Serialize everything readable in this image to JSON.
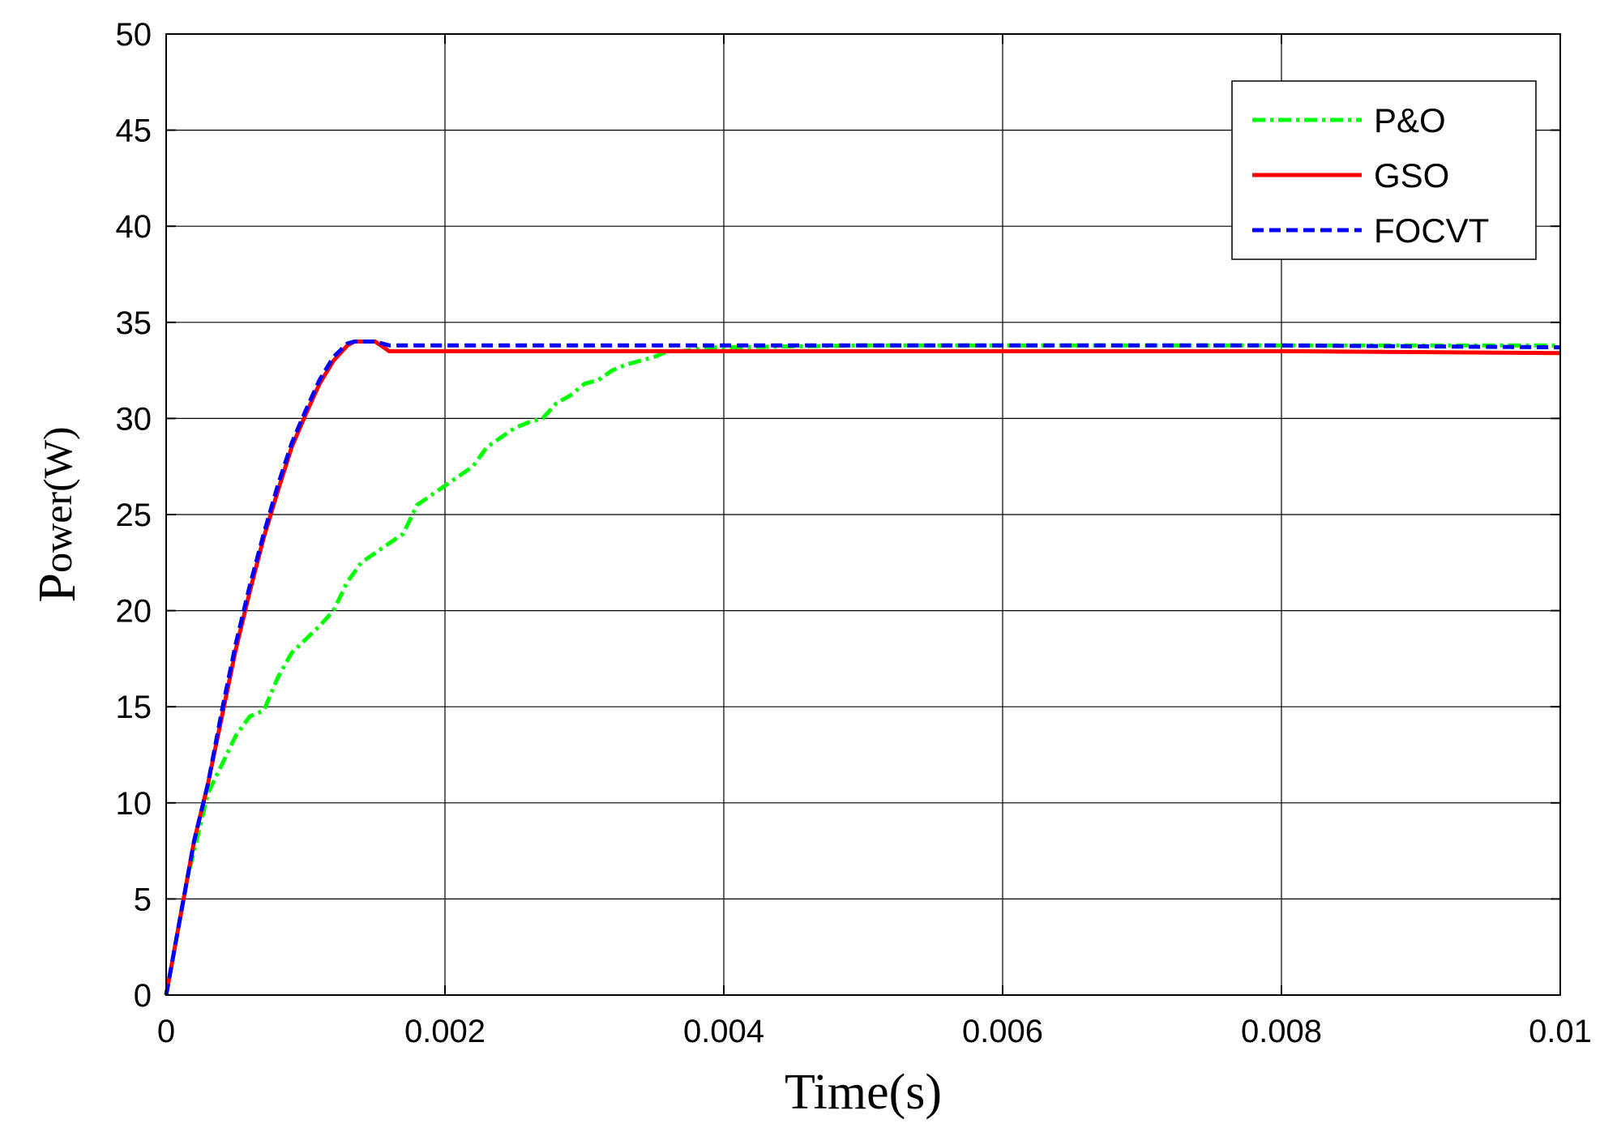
{
  "chart_data": {
    "type": "line",
    "title": "",
    "xlabel": "Time(s)",
    "ylabel": "Power(W)",
    "ylabel_main": "P",
    "ylabel_rest": "ower(W)",
    "xlim": [
      0,
      0.01
    ],
    "ylim": [
      0,
      50
    ],
    "xticks": [
      0,
      0.002,
      0.004,
      0.006,
      0.008,
      0.01
    ],
    "xtick_labels": [
      "0",
      "0.002",
      "0.004",
      "0.006",
      "0.008",
      "0.01"
    ],
    "yticks": [
      0,
      5,
      10,
      15,
      20,
      25,
      30,
      35,
      40,
      45,
      50
    ],
    "ytick_labels": [
      "0",
      "5",
      "10",
      "15",
      "20",
      "25",
      "30",
      "35",
      "40",
      "45",
      "50"
    ],
    "grid": true,
    "legend_position": "top-right",
    "series": [
      {
        "name": "P&O",
        "color": "#00ff00",
        "style": "dash-dot",
        "x": [
          0,
          5e-05,
          0.0001,
          0.00015,
          0.0002,
          0.00025,
          0.0003,
          0.0004,
          0.0005,
          0.0006,
          0.0007,
          0.0008,
          0.0009,
          0.001,
          0.0011,
          0.0012,
          0.0013,
          0.0014,
          0.0015,
          0.0016,
          0.0017,
          0.0018,
          0.0019,
          0.002,
          0.0021,
          0.0022,
          0.0023,
          0.0024,
          0.0025,
          0.0026,
          0.0027,
          0.0028,
          0.0029,
          0.003,
          0.0031,
          0.0032,
          0.0033,
          0.0034,
          0.0035,
          0.0036,
          0.0037,
          0.0038,
          0.0039,
          0.004,
          0.005,
          0.006,
          0.007,
          0.008,
          0.009,
          0.01
        ],
        "y": [
          0,
          2,
          4,
          6,
          7.5,
          9,
          10.5,
          12,
          13.5,
          14.5,
          14.8,
          16.5,
          17.8,
          18.5,
          19.2,
          20,
          21.5,
          22.5,
          23,
          23.5,
          24,
          25.5,
          26,
          26.5,
          27,
          27.5,
          28.5,
          29,
          29.5,
          29.8,
          30,
          30.8,
          31.2,
          31.8,
          32,
          32.5,
          32.8,
          33,
          33.2,
          33.5,
          33.5,
          33.6,
          33.7,
          33.7,
          33.8,
          33.8,
          33.8,
          33.8,
          33.8,
          33.8
        ]
      },
      {
        "name": "GSO",
        "color": "#ff0000",
        "style": "solid",
        "x": [
          0,
          5e-05,
          0.0001,
          0.00015,
          0.0002,
          0.0003,
          0.0004,
          0.0005,
          0.0006,
          0.0007,
          0.0008,
          0.0009,
          0.001,
          0.0011,
          0.0012,
          0.0013,
          0.00135,
          0.0014,
          0.0015,
          0.0016,
          0.002,
          0.004,
          0.006,
          0.008,
          0.01
        ],
        "y": [
          0,
          2,
          4,
          6,
          8,
          11,
          14.5,
          18,
          21,
          23.8,
          26.2,
          28.5,
          30.2,
          31.8,
          33,
          33.8,
          34,
          34,
          34,
          33.5,
          33.5,
          33.5,
          33.5,
          33.5,
          33.4
        ]
      },
      {
        "name": "FOCVT",
        "color": "#0000ff",
        "style": "dashed",
        "x": [
          0,
          5e-05,
          0.0001,
          0.00015,
          0.0002,
          0.0003,
          0.0004,
          0.0005,
          0.0006,
          0.0007,
          0.0008,
          0.0009,
          0.001,
          0.0011,
          0.0012,
          0.0013,
          0.00135,
          0.0014,
          0.0015,
          0.0016,
          0.002,
          0.004,
          0.006,
          0.008,
          0.01
        ],
        "y": [
          0,
          2,
          4,
          6,
          8,
          11,
          14.8,
          18.3,
          21.3,
          24,
          26.5,
          28.7,
          30.4,
          32,
          33.2,
          33.9,
          34,
          34,
          34,
          33.8,
          33.8,
          33.8,
          33.8,
          33.8,
          33.7
        ]
      }
    ]
  }
}
